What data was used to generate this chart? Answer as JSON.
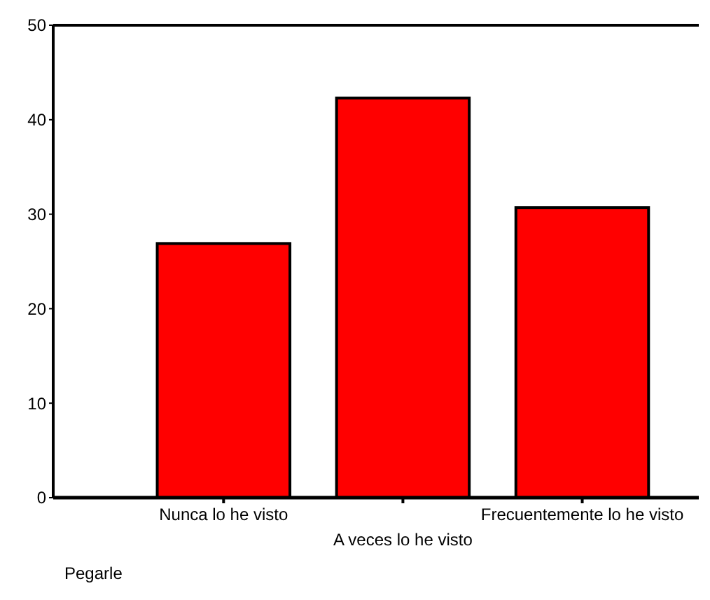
{
  "chart_data": {
    "type": "bar",
    "xlabel": "Pegarle",
    "categories": [
      "Nunca lo he visto",
      "A veces lo he visto",
      "Frecuentemente lo he visto"
    ],
    "values": [
      26.9,
      42.3,
      30.7
    ],
    "color": "#ff0000",
    "ylim": [
      0,
      50
    ],
    "yticks": [
      0,
      10,
      20,
      30,
      40,
      50
    ],
    "grid": false
  }
}
